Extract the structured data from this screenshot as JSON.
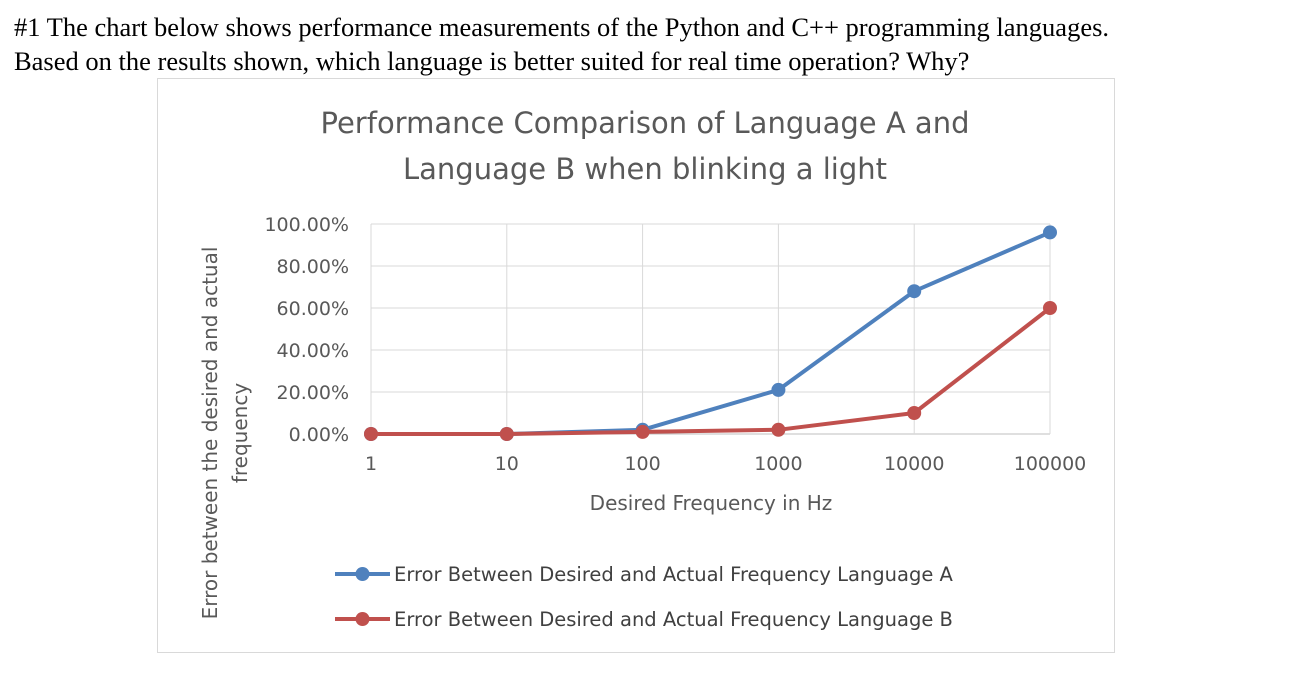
{
  "question": {
    "line1": "#1 The chart below shows performance measurements of the Python and C++ programming languages.",
    "line2": "Based on the results shown, which language is better suited for real time operation?  Why?"
  },
  "chart_data": {
    "type": "line",
    "title_line1": "Performance Comparison of Language A and",
    "title_line2": "Language B when blinking a light",
    "xlabel": "Desired Frequency in Hz",
    "ylabel_line1": "Error between the desired and actual",
    "ylabel_line2": "frequency",
    "x": [
      "1",
      "10",
      "100",
      "1000",
      "10000",
      "100000"
    ],
    "yticks": [
      "0.00%",
      "20.00%",
      "40.00%",
      "60.00%",
      "80.00%",
      "100.00%"
    ],
    "ylim": [
      0,
      1
    ],
    "grid": true,
    "legend_position": "bottom",
    "series": [
      {
        "name": "Error Between Desired and Actual Frequency Language A",
        "color": "#4f81bd",
        "values": [
          0.0,
          0.0,
          0.02,
          0.21,
          0.68,
          0.96
        ]
      },
      {
        "name": "Error Between Desired and Actual Frequency Language B",
        "color": "#c0504d",
        "values": [
          0.0,
          0.0,
          0.01,
          0.02,
          0.1,
          0.6
        ]
      }
    ]
  }
}
